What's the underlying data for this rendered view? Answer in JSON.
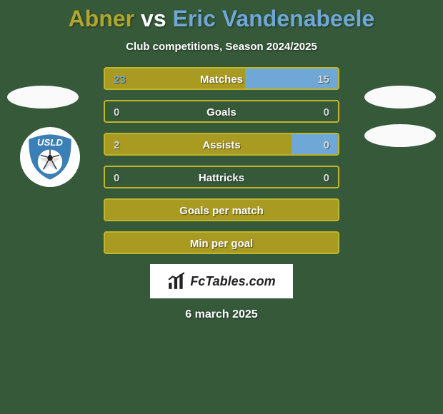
{
  "background_color": "#36593a",
  "title": {
    "player1": "Abner",
    "vs": "vs",
    "player2": "Eric Vandenabeele",
    "color1": "#b0a62f",
    "color_vs": "#ffffff",
    "color2": "#6fa8d6"
  },
  "subtitle": "Club competitions, Season 2024/2025",
  "accent_left": "#a99a22",
  "accent_right": "#6fa8d6",
  "bar_border": "#c0b52c",
  "neutral_val_color": "#d8d8d8",
  "stats": [
    {
      "label": "Matches",
      "left_val": "23",
      "right_val": "15",
      "left_pct": 60,
      "split": true,
      "left_num_color": "#6fa8d6",
      "right_num_color": "#d8d8d8"
    },
    {
      "label": "Goals",
      "left_val": "0",
      "right_val": "0",
      "left_pct": 50,
      "split": false,
      "left_num_color": "#d8d8d8",
      "right_num_color": "#d8d8d8"
    },
    {
      "label": "Assists",
      "left_val": "2",
      "right_val": "0",
      "left_pct": 80,
      "split": true,
      "left_num_color": "#d8d8d8",
      "right_num_color": "#d8d8d8"
    },
    {
      "label": "Hattricks",
      "left_val": "0",
      "right_val": "0",
      "left_pct": 50,
      "split": false,
      "left_num_color": "#d8d8d8",
      "right_num_color": "#d8d8d8"
    }
  ],
  "extra_rows": [
    {
      "label": "Goals per match"
    },
    {
      "label": "Min per goal"
    }
  ],
  "footer": {
    "site": "FcTables.com",
    "date": "6 march 2025"
  },
  "club_logo": {
    "text": "USLD",
    "bg": "#ffffff",
    "main": "#3a7fb5",
    "accent": "#1a4e7a"
  }
}
